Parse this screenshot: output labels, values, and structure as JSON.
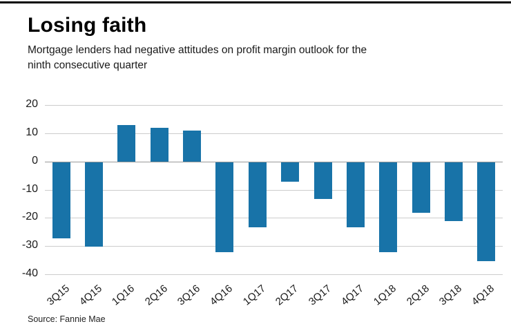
{
  "header": {
    "title": "Losing faith",
    "subtitle": "Mortgage lenders had negative attitudes on profit margin outlook for the\nninth consecutive quarter"
  },
  "footer": {
    "source": "Source: Fannie Mae"
  },
  "chart_data": {
    "type": "bar",
    "title": "Losing faith",
    "subtitle": "Mortgage lenders had negative attitudes on profit margin outlook for the ninth consecutive quarter",
    "categories": [
      "3Q15",
      "4Q15",
      "1Q16",
      "2Q16",
      "3Q16",
      "4Q16",
      "1Q17",
      "2Q17",
      "3Q17",
      "4Q17",
      "1Q18",
      "2Q18",
      "3Q18",
      "4Q18"
    ],
    "values": [
      -27,
      -30,
      13,
      12,
      11,
      -32,
      -23,
      -7,
      -13,
      -23,
      -32,
      -18,
      -21,
      -35
    ],
    "xlabel": "",
    "ylabel": "",
    "ylim": [
      -40,
      20
    ],
    "yticks": [
      20,
      10,
      0,
      -10,
      -20,
      -30,
      -40
    ],
    "grid": true,
    "legend": false,
    "bar_color": "#1873a8",
    "gridline_color": "#cccccc",
    "zero_line_color": "#999999",
    "axis_text_color": "#1a1a1a",
    "source": "Source: Fannie Mae"
  }
}
